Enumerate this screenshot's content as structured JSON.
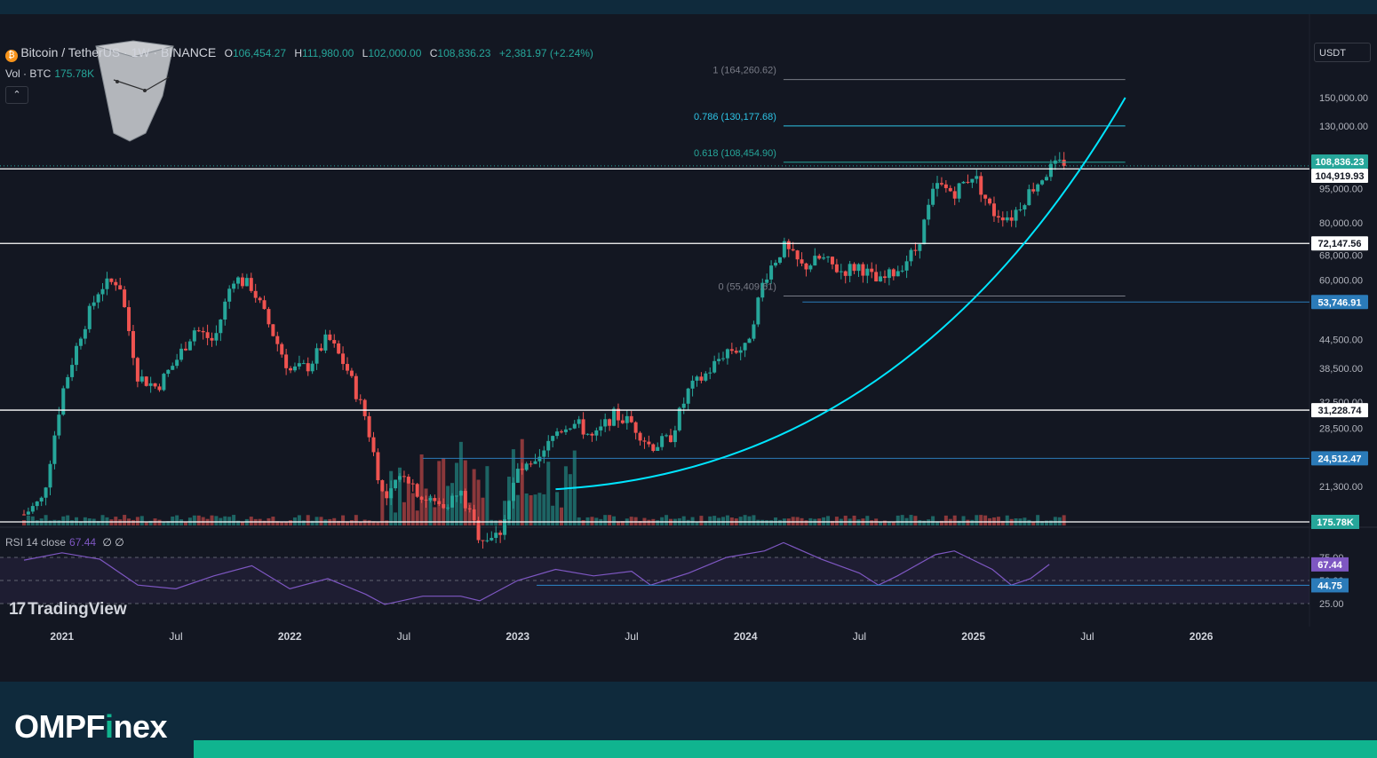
{
  "header": {
    "symbol": "Bitcoin / TetherUS · 1W · BINANCE",
    "open_label": "O",
    "open": "106,454.27",
    "high_label": "H",
    "high": "111,980.00",
    "low_label": "L",
    "low": "102,000.00",
    "close_label": "C",
    "close": "108,836.23",
    "change": "+2,381.97 (+2.24%)"
  },
  "volume_indicator": {
    "label": "Vol · BTC",
    "value": "175.78K"
  },
  "rsi_indicator": {
    "label": "RSI 14 close",
    "value": "67.44",
    "extra": "∅ ∅"
  },
  "currency_button": "USDT",
  "watermark": "TradingView",
  "brand": {
    "prefix": "OMPF",
    "dot_letter": "i",
    "suffix": "nex"
  },
  "colors": {
    "background": "#131722",
    "up": "#26a69a",
    "down": "#ef5350",
    "curve": "#00e5ff",
    "rsi": "#7e57c2",
    "frame": "#0f2a3c",
    "brand_accent": "#10b48f"
  },
  "icon_names": [
    "bitcoin-icon",
    "chevron-up-icon",
    "tradingview-logo-icon",
    "3d-cube-widget-icon"
  ],
  "chart_data": {
    "type": "candlestick",
    "scale": "log",
    "interval": "1W",
    "ylim": [
      17500,
      185000
    ],
    "x_range": [
      "2020-11",
      "2026-06"
    ],
    "x_ticks": [
      "2021",
      "Jul",
      "2022",
      "Jul",
      "2023",
      "Jul",
      "2024",
      "Jul",
      "2025",
      "Jul",
      "2026"
    ],
    "y_ticks": [
      "150,000.00",
      "130,000.00",
      "95,000.00",
      "80,000.00",
      "68,000.00",
      "60,000.00",
      "44,500.00",
      "38,500.00",
      "32,500.00",
      "28,500.00",
      "21,300.00"
    ],
    "price_points": [
      {
        "t": "2020-11",
        "p": 18500
      },
      {
        "t": "2020-12",
        "p": 20000
      },
      {
        "t": "2021-01",
        "p": 34000
      },
      {
        "t": "2021-02",
        "p": 46000
      },
      {
        "t": "2021-03",
        "p": 58000
      },
      {
        "t": "2021-04",
        "p": 60000
      },
      {
        "t": "2021-05",
        "p": 37000
      },
      {
        "t": "2021-06",
        "p": 35000
      },
      {
        "t": "2021-07",
        "p": 40000
      },
      {
        "t": "2021-08",
        "p": 47000
      },
      {
        "t": "2021-09",
        "p": 44000
      },
      {
        "t": "2021-10",
        "p": 61000
      },
      {
        "t": "2021-11",
        "p": 58000
      },
      {
        "t": "2021-12",
        "p": 47000
      },
      {
        "t": "2022-01",
        "p": 38000
      },
      {
        "t": "2022-02",
        "p": 39000
      },
      {
        "t": "2022-03",
        "p": 45000
      },
      {
        "t": "2022-04",
        "p": 38500
      },
      {
        "t": "2022-05",
        "p": 30000
      },
      {
        "t": "2022-06",
        "p": 19500
      },
      {
        "t": "2022-07",
        "p": 23000
      },
      {
        "t": "2022-08",
        "p": 20000
      },
      {
        "t": "2022-09",
        "p": 19400
      },
      {
        "t": "2022-10",
        "p": 20500
      },
      {
        "t": "2022-11",
        "p": 16500
      },
      {
        "t": "2022-12",
        "p": 16600
      },
      {
        "t": "2023-01",
        "p": 23000
      },
      {
        "t": "2023-02",
        "p": 23500
      },
      {
        "t": "2023-03",
        "p": 28000
      },
      {
        "t": "2023-04",
        "p": 29500
      },
      {
        "t": "2023-05",
        "p": 27000
      },
      {
        "t": "2023-06",
        "p": 30500
      },
      {
        "t": "2023-07",
        "p": 29300
      },
      {
        "t": "2023-08",
        "p": 26000
      },
      {
        "t": "2023-09",
        "p": 27000
      },
      {
        "t": "2023-10",
        "p": 34500
      },
      {
        "t": "2023-11",
        "p": 37700
      },
      {
        "t": "2023-12",
        "p": 42300
      },
      {
        "t": "2024-01",
        "p": 42500
      },
      {
        "t": "2024-02",
        "p": 61000
      },
      {
        "t": "2024-03",
        "p": 71000
      },
      {
        "t": "2024-04",
        "p": 64000
      },
      {
        "t": "2024-05",
        "p": 67000
      },
      {
        "t": "2024-06",
        "p": 62700
      },
      {
        "t": "2024-07",
        "p": 64600
      },
      {
        "t": "2024-08",
        "p": 58900
      },
      {
        "t": "2024-09",
        "p": 63300
      },
      {
        "t": "2024-10",
        "p": 70200
      },
      {
        "t": "2024-11",
        "p": 96400
      },
      {
        "t": "2024-12",
        "p": 93400
      },
      {
        "t": "2025-01",
        "p": 102400
      },
      {
        "t": "2025-02",
        "p": 84300
      },
      {
        "t": "2025-03",
        "p": 82500
      },
      {
        "t": "2025-04",
        "p": 94200
      },
      {
        "t": "2025-05",
        "p": 104600
      },
      {
        "t": "2025-05-26",
        "p": 108836
      }
    ],
    "price_tags": [
      {
        "label": "108,836.23",
        "price": 108836,
        "style": "last"
      },
      {
        "label": "104,919.93",
        "price": 104920,
        "style": "white"
      },
      {
        "label": "72,147.56",
        "price": 72147,
        "style": "white"
      },
      {
        "label": "53,746.91",
        "price": 53747,
        "style": "blue"
      },
      {
        "label": "31,228.74",
        "price": 31229,
        "style": "white"
      },
      {
        "label": "24,512.47",
        "price": 24512,
        "style": "blue"
      }
    ],
    "horizontal_levels": [
      {
        "price": 104920,
        "color": "#ffffff"
      },
      {
        "price": 72147,
        "color": "#ffffff"
      },
      {
        "price": 31229,
        "color": "#ffffff"
      },
      {
        "price": 53747,
        "color": "#2b7bb9",
        "start": "2024-04"
      },
      {
        "price": 24512,
        "color": "#2b7bb9",
        "start": "2022-08"
      }
    ],
    "fibonacci": [
      {
        "label": "1 (164,260.62)",
        "level": 1,
        "price": 164260.62,
        "color": "#787b86"
      },
      {
        "label": "0.786 (130,177.68)",
        "level": 0.786,
        "price": 130177.68,
        "color": "#2ec4e6"
      },
      {
        "label": "0.618 (108,454.90)",
        "level": 0.618,
        "price": 108454.9,
        "color": "#26a69a"
      },
      {
        "label": "0 (55,409.61)",
        "level": 0,
        "price": 55409.61,
        "color": "#787b86"
      }
    ],
    "curve": {
      "color": "#00e5ff",
      "start": {
        "t": "2023-03",
        "p": 21000
      },
      "end": {
        "t": "2025-09",
        "p": 150000
      }
    },
    "volume": {
      "label": "175.78K",
      "value": 175780
    },
    "rsi": {
      "period": 14,
      "last": 67.44,
      "support_label": "44.75",
      "support": 44.75,
      "levels": [
        "75.00",
        "50.00",
        "25.00"
      ],
      "values": [
        {
          "t": "2020-11",
          "v": 72
        },
        {
          "t": "2021-01",
          "v": 80
        },
        {
          "t": "2021-03",
          "v": 73
        },
        {
          "t": "2021-05",
          "v": 45
        },
        {
          "t": "2021-07",
          "v": 41
        },
        {
          "t": "2021-09",
          "v": 55
        },
        {
          "t": "2021-11",
          "v": 66
        },
        {
          "t": "2022-01",
          "v": 41
        },
        {
          "t": "2022-03",
          "v": 52
        },
        {
          "t": "2022-05",
          "v": 35
        },
        {
          "t": "2022-06",
          "v": 24
        },
        {
          "t": "2022-08",
          "v": 33
        },
        {
          "t": "2022-10",
          "v": 33
        },
        {
          "t": "2022-11",
          "v": 28
        },
        {
          "t": "2023-01",
          "v": 50
        },
        {
          "t": "2023-03",
          "v": 62
        },
        {
          "t": "2023-05",
          "v": 55
        },
        {
          "t": "2023-07",
          "v": 60
        },
        {
          "t": "2023-08",
          "v": 45
        },
        {
          "t": "2023-10",
          "v": 58
        },
        {
          "t": "2023-12",
          "v": 75
        },
        {
          "t": "2024-02",
          "v": 82
        },
        {
          "t": "2024-03",
          "v": 91
        },
        {
          "t": "2024-05",
          "v": 73
        },
        {
          "t": "2024-07",
          "v": 58
        },
        {
          "t": "2024-08",
          "v": 45
        },
        {
          "t": "2024-09",
          "v": 55
        },
        {
          "t": "2024-11",
          "v": 78
        },
        {
          "t": "2024-12",
          "v": 82
        },
        {
          "t": "2025-01",
          "v": 72
        },
        {
          "t": "2025-02",
          "v": 62
        },
        {
          "t": "2025-03",
          "v": 45
        },
        {
          "t": "2025-04",
          "v": 52
        },
        {
          "t": "2025-05",
          "v": 67.44
        }
      ]
    }
  }
}
